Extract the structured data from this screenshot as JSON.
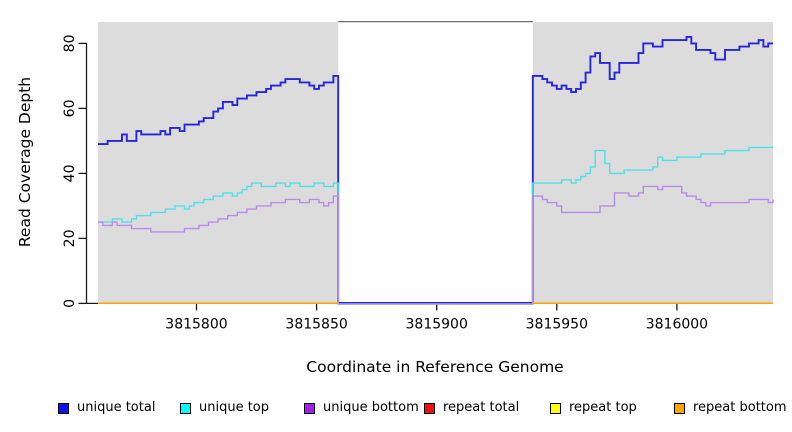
{
  "chart_data": {
    "type": "line",
    "title": "",
    "xlabel": "Coordinate in Reference Genome",
    "ylabel": "Read Coverage Depth",
    "xlim": [
      3815759,
      3816040
    ],
    "ylim": [
      0,
      86
    ],
    "x_ticks": [
      3815800,
      3815850,
      3815900,
      3815950,
      3816000
    ],
    "x_tick_labels": [
      "3815800",
      "3815850",
      "3815900",
      "3815950",
      "3816000"
    ],
    "y_ticks": [
      0,
      20,
      40,
      60,
      80
    ],
    "y_tick_labels": [
      "0",
      "20",
      "40",
      "60",
      "80"
    ],
    "grid": false,
    "legend_position": "bottom",
    "panel_color": "#dcdcdc",
    "gap_region": {
      "start": 3815859,
      "end": 3815940,
      "note_value_in_gap": 0
    },
    "sample_step_bases": 2,
    "segments": {
      "left_x_start": 3815759,
      "right_x_start": 3815940
    },
    "series": [
      {
        "name": "unique total",
        "line_color": "#2626de",
        "legend_color": "#1111ee",
        "line_width": 1.9,
        "baseline_offset": -0.5,
        "left": [
          49,
          49,
          50,
          50,
          50,
          52,
          50,
          50,
          53,
          52,
          52,
          52,
          52,
          53,
          52,
          54,
          54,
          53,
          55,
          55,
          55,
          56,
          57,
          57,
          59,
          60,
          62,
          62,
          61,
          63,
          63,
          64,
          64,
          65,
          65,
          66,
          67,
          67,
          68,
          69,
          69,
          69,
          68,
          68,
          67,
          66,
          67,
          68,
          68,
          70,
          70
        ],
        "right": [
          70,
          70,
          69,
          68,
          67,
          66,
          67,
          66,
          65,
          66,
          68,
          71,
          76,
          77,
          74,
          74,
          69,
          71,
          74,
          74,
          74,
          74,
          77,
          80,
          80,
          79,
          79,
          81,
          81,
          81,
          81,
          81,
          82,
          80,
          78,
          78,
          78,
          77,
          75,
          75,
          78,
          78,
          78,
          79,
          79,
          80,
          80,
          81,
          79,
          80,
          80
        ]
      },
      {
        "name": "unique top",
        "line_color": "#4fdfe9",
        "legend_color": "#00ffff",
        "line_width": 1.4,
        "baseline_offset": 0.6,
        "left": [
          25,
          25,
          25,
          26,
          26,
          25,
          25,
          26,
          27,
          27,
          27,
          28,
          28,
          28,
          29,
          29,
          30,
          30,
          29,
          30,
          31,
          31,
          32,
          32,
          33,
          33,
          34,
          34,
          33,
          34,
          35,
          36,
          37,
          37,
          36,
          36,
          36,
          37,
          37,
          36,
          37,
          37,
          36,
          36,
          36,
          37,
          37,
          36,
          36,
          37,
          37
        ],
        "right": [
          37,
          37,
          37,
          37,
          37,
          37,
          38,
          38,
          37,
          38,
          39,
          40,
          42,
          47,
          47,
          43,
          40,
          40,
          40,
          41,
          41,
          41,
          41,
          41,
          41,
          42,
          45,
          44,
          44,
          44,
          45,
          45,
          45,
          45,
          45,
          46,
          46,
          46,
          46,
          46,
          47,
          47,
          47,
          47,
          47,
          48,
          48,
          48,
          48,
          48,
          48
        ]
      },
      {
        "name": "unique bottom",
        "line_color": "#b88ce6",
        "legend_color": "#a020f0",
        "line_width": 1.4,
        "baseline_offset": 0.7,
        "left": [
          25,
          24,
          24,
          25,
          24,
          24,
          24,
          23,
          23,
          23,
          23,
          22,
          22,
          22,
          22,
          22,
          22,
          22,
          23,
          23,
          23,
          24,
          24,
          25,
          25,
          26,
          26,
          27,
          27,
          28,
          28,
          29,
          29,
          30,
          30,
          30,
          31,
          31,
          31,
          32,
          32,
          32,
          31,
          31,
          32,
          32,
          31,
          30,
          31,
          33,
          34
        ],
        "right": [
          33,
          33,
          32,
          31,
          31,
          30,
          28,
          28,
          28,
          28,
          28,
          28,
          28,
          28,
          30,
          30,
          30,
          34,
          34,
          34,
          33,
          33,
          34,
          36,
          36,
          36,
          35,
          36,
          36,
          36,
          36,
          34,
          33,
          33,
          32,
          31,
          30,
          31,
          31,
          31,
          31,
          31,
          31,
          31,
          31,
          32,
          32,
          32,
          32,
          31,
          32
        ]
      },
      {
        "name": "repeat total",
        "line_color": "#ee1111",
        "legend_color": "#ee1111",
        "line_width": 1.4,
        "baseline_only": true,
        "value": 0
      },
      {
        "name": "repeat top",
        "line_color": "#ffff00",
        "legend_color": "#ffff00",
        "line_width": 1.4,
        "baseline_only": true,
        "value": 0
      },
      {
        "name": "repeat bottom",
        "line_color": "#ffa500",
        "legend_color": "#ffa500",
        "line_width": 1.5,
        "baseline_only": true,
        "value": 0
      }
    ]
  },
  "style": {
    "axis_color": "#1a1a1a",
    "gap_top_border_color": "#6f6f6f",
    "tick_label_size": 14,
    "axis_title_size": 15.5
  }
}
